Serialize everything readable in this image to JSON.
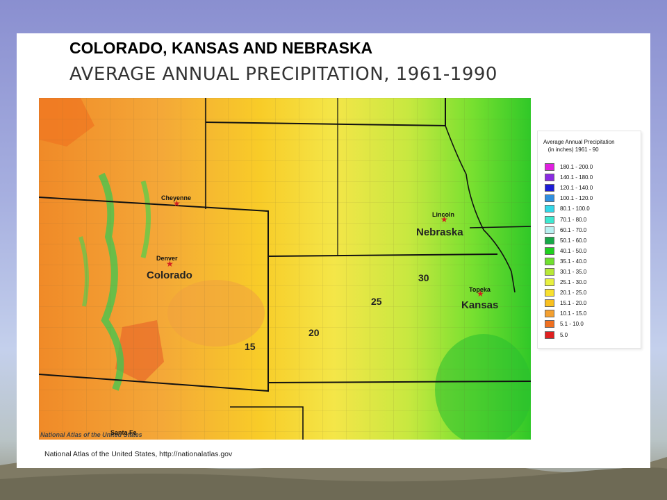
{
  "title": "COLORADO, KANSAS AND NEBRASKA",
  "subtitle": "AVERAGE ANNUAL PRECIPITATION, 1961-1990",
  "map": {
    "watermark": "National Atlas of the United States",
    "states": [
      "Nebraska",
      "Colorado",
      "Kansas"
    ],
    "cities": [
      {
        "name": "Cheyenne"
      },
      {
        "name": "Lincoln"
      },
      {
        "name": "Denver"
      },
      {
        "name": "Topeka"
      },
      {
        "name": "Santa Fe"
      }
    ],
    "contour_labels": [
      "30",
      "25",
      "20",
      "15"
    ]
  },
  "legend": {
    "title_line1": "Average Annual Precipitation",
    "title_line2": "(in inches) 1961 - 90",
    "items": [
      {
        "range": "180.1 - 200.0",
        "color": "#e020e0"
      },
      {
        "range": "140.1 - 180.0",
        "color": "#8a2be2"
      },
      {
        "range": "120.1 - 140.0",
        "color": "#1c1cd8"
      },
      {
        "range": "100.1 - 120.0",
        "color": "#2f8fe0"
      },
      {
        "range": "80.1 - 100.0",
        "color": "#33d8e8"
      },
      {
        "range": "70.1 - 80.0",
        "color": "#3ee8d0"
      },
      {
        "range": "60.1 - 70.0",
        "color": "#b8f0f0"
      },
      {
        "range": "50.1 - 60.0",
        "color": "#18a848"
      },
      {
        "range": "40.1 - 50.0",
        "color": "#20d020"
      },
      {
        "range": "35.1 - 40.0",
        "color": "#70e030"
      },
      {
        "range": "30.1 - 35.0",
        "color": "#b8e838"
      },
      {
        "range": "25.1 - 30.0",
        "color": "#e8f040"
      },
      {
        "range": "20.1 - 25.0",
        "color": "#f8e030"
      },
      {
        "range": "15.1 - 20.0",
        "color": "#f8c020"
      },
      {
        "range": "10.1 - 15.0",
        "color": "#f4a030"
      },
      {
        "range": "5.1 - 10.0",
        "color": "#f07020"
      },
      {
        "range": "5.0",
        "color": "#e02020"
      }
    ]
  },
  "credit": "National Atlas of the United States, http://nationalatlas.gov"
}
